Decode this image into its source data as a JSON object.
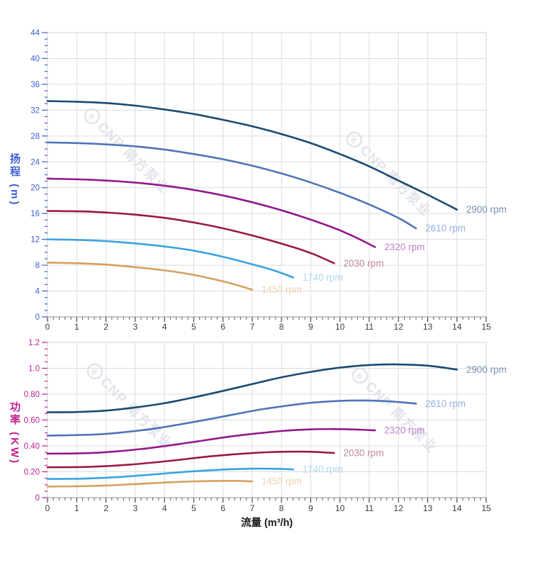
{
  "page": {
    "background": "#ffffff"
  },
  "watermark": {
    "logo": "e",
    "text": "CNP 南方泵业",
    "color": "#c9cede"
  },
  "theme": {
    "border": "#d0d0d0",
    "grid": "#dcdcdc",
    "spine": "#8f8f8f",
    "tick_major": "#222222",
    "tick_minor": "#555555",
    "x_tick_label_color": "#3a3a3a",
    "x_axis_title_color": "#1a1a1a"
  },
  "chart_data": [
    {
      "type": "line",
      "title": "",
      "xlabel": "",
      "ylabel": "扬程 (m)",
      "xlim": [
        0,
        15
      ],
      "ylim": [
        0,
        44
      ],
      "x_major_step": 1,
      "x_minor_step": 0.2,
      "y_major_step": 4,
      "y_minor_step": 1,
      "grid": true,
      "legend_position": "curve-end-labels",
      "axis_color": "#3d5ed1",
      "x_tick_labels": [
        "0",
        "1",
        "2",
        "3",
        "4",
        "5",
        "6",
        "7",
        "8",
        "9",
        "10",
        "11",
        "12",
        "13",
        "14",
        "15"
      ],
      "y_tick_labels": [
        "0",
        "4",
        "8",
        "12",
        "16",
        "20",
        "24",
        "28",
        "32",
        "36",
        "40",
        "44"
      ],
      "series": [
        {
          "name": "2900 rpm",
          "color": "#1b4a73",
          "label_color": "#7690ae",
          "points": [
            [
              0,
              33.4
            ],
            [
              1,
              33.3
            ],
            [
              2,
              33.1
            ],
            [
              3,
              32.7
            ],
            [
              4,
              32.1
            ],
            [
              5,
              31.4
            ],
            [
              6,
              30.5
            ],
            [
              7,
              29.5
            ],
            [
              8,
              28.3
            ],
            [
              9,
              26.9
            ],
            [
              10,
              25.2
            ],
            [
              11,
              23.3
            ],
            [
              12,
              21.1
            ],
            [
              13,
              18.9
            ],
            [
              14,
              16.6
            ]
          ]
        },
        {
          "name": "2610 rpm",
          "color": "#4f74ba",
          "label_color": "#97aede",
          "points": [
            [
              0,
              27.0
            ],
            [
              1,
              26.9
            ],
            [
              2,
              26.7
            ],
            [
              3,
              26.4
            ],
            [
              4,
              25.9
            ],
            [
              5,
              25.2
            ],
            [
              6,
              24.4
            ],
            [
              7,
              23.4
            ],
            [
              8,
              22.2
            ],
            [
              9,
              20.8
            ],
            [
              10,
              19.2
            ],
            [
              11,
              17.4
            ],
            [
              12,
              15.3
            ],
            [
              12.6,
              13.7
            ]
          ]
        },
        {
          "name": "2320 rpm",
          "color": "#92188c",
          "label_color": "#bc7fc6",
          "points": [
            [
              0,
              21.4
            ],
            [
              1.6,
              21.2
            ],
            [
              3.2,
              20.7
            ],
            [
              4.8,
              19.8
            ],
            [
              6.4,
              18.4
            ],
            [
              8,
              16.5
            ],
            [
              9.6,
              14.1
            ],
            [
              10.4,
              12.6
            ],
            [
              11.2,
              10.8
            ]
          ]
        },
        {
          "name": "2030 rpm",
          "color": "#9a1a40",
          "label_color": "#c2879b",
          "points": [
            [
              0,
              16.4
            ],
            [
              1.4,
              16.3
            ],
            [
              2.8,
              15.9
            ],
            [
              4.2,
              15.2
            ],
            [
              5.6,
              14.1
            ],
            [
              7,
              12.6
            ],
            [
              8.4,
              10.8
            ],
            [
              9.1,
              9.7
            ],
            [
              9.8,
              8.3
            ]
          ]
        },
        {
          "name": "1740 rpm",
          "color": "#3aa3e0",
          "label_color": "#a9d7f1",
          "points": [
            [
              0,
              12.0
            ],
            [
              1.2,
              11.9
            ],
            [
              2.4,
              11.6
            ],
            [
              3.6,
              11.1
            ],
            [
              4.8,
              10.4
            ],
            [
              6,
              9.3
            ],
            [
              7.2,
              7.9
            ],
            [
              7.8,
              7.1
            ],
            [
              8.4,
              6.1
            ]
          ]
        },
        {
          "name": "1450 rpm",
          "color": "#d7a05e",
          "label_color": "#ead3ac",
          "points": [
            [
              0,
              8.4
            ],
            [
              1,
              8.3
            ],
            [
              2,
              8.1
            ],
            [
              3,
              7.7
            ],
            [
              4,
              7.2
            ],
            [
              5,
              6.5
            ],
            [
              6,
              5.5
            ],
            [
              6.5,
              4.9
            ],
            [
              7,
              4.2
            ]
          ]
        }
      ]
    },
    {
      "type": "line",
      "title": "",
      "xlabel": "流量 (m³/h)",
      "ylabel": "功率 (KW)",
      "xlim": [
        0,
        15
      ],
      "ylim": [
        0,
        1.2
      ],
      "x_major_step": 1,
      "x_minor_step": 0.2,
      "y_major_step": 0.2,
      "y_minor_step": 0.05,
      "grid": true,
      "legend_position": "curve-end-labels",
      "axis_color": "#c0218f",
      "x_tick_labels": [
        "0",
        "1",
        "2",
        "3",
        "4",
        "5",
        "6",
        "7",
        "8",
        "9",
        "10",
        "11",
        "12",
        "13",
        "14",
        "15"
      ],
      "y_tick_labels": [
        "0",
        "0.20",
        "0.40",
        "0.60",
        "0.80",
        "1.0",
        "1.2"
      ],
      "series": [
        {
          "name": "2900 rpm",
          "color": "#1b4a73",
          "label_color": "#7690ae",
          "points": [
            [
              0,
              0.66
            ],
            [
              1,
              0.662
            ],
            [
              2,
              0.673
            ],
            [
              3,
              0.697
            ],
            [
              4,
              0.73
            ],
            [
              5,
              0.775
            ],
            [
              6,
              0.825
            ],
            [
              7,
              0.878
            ],
            [
              8,
              0.93
            ],
            [
              9,
              0.972
            ],
            [
              10,
              1.005
            ],
            [
              11,
              1.025
            ],
            [
              12,
              1.03
            ],
            [
              13,
              1.02
            ],
            [
              14,
              0.99
            ]
          ]
        },
        {
          "name": "2610 rpm",
          "color": "#4f74ba",
          "label_color": "#97aede",
          "points": [
            [
              0,
              0.48
            ],
            [
              0.9,
              0.483
            ],
            [
              1.8,
              0.49
            ],
            [
              2.7,
              0.508
            ],
            [
              3.6,
              0.532
            ],
            [
              4.5,
              0.565
            ],
            [
              5.4,
              0.601
            ],
            [
              6.3,
              0.64
            ],
            [
              7.2,
              0.678
            ],
            [
              8.1,
              0.708
            ],
            [
              9,
              0.733
            ],
            [
              9.9,
              0.747
            ],
            [
              10.8,
              0.751
            ],
            [
              11.7,
              0.744
            ],
            [
              12.6,
              0.727
            ]
          ]
        },
        {
          "name": "2320 rpm",
          "color": "#92188c",
          "label_color": "#bc7fc6",
          "points": [
            [
              0,
              0.34
            ],
            [
              1.6,
              0.346
            ],
            [
              3.2,
              0.376
            ],
            [
              4.8,
              0.424
            ],
            [
              6.4,
              0.477
            ],
            [
              8,
              0.515
            ],
            [
              9,
              0.528
            ],
            [
              9.8,
              0.53
            ],
            [
              10.5,
              0.527
            ],
            [
              11.2,
              0.52
            ]
          ]
        },
        {
          "name": "2030 rpm",
          "color": "#9a1a40",
          "label_color": "#c2879b",
          "points": [
            [
              0,
              0.235
            ],
            [
              1.4,
              0.238
            ],
            [
              2.8,
              0.255
            ],
            [
              4.2,
              0.285
            ],
            [
              5.6,
              0.32
            ],
            [
              7,
              0.345
            ],
            [
              7.9,
              0.354
            ],
            [
              8.6,
              0.356
            ],
            [
              9.2,
              0.353
            ],
            [
              9.8,
              0.345
            ]
          ]
        },
        {
          "name": "1740 rpm",
          "color": "#3aa3e0",
          "label_color": "#a9d7f1",
          "points": [
            [
              0,
              0.145
            ],
            [
              1.2,
              0.147
            ],
            [
              2.4,
              0.159
            ],
            [
              3.6,
              0.179
            ],
            [
              4.8,
              0.201
            ],
            [
              6,
              0.217
            ],
            [
              6.8,
              0.223
            ],
            [
              7.4,
              0.224
            ],
            [
              8,
              0.222
            ],
            [
              8.4,
              0.218
            ]
          ]
        },
        {
          "name": "1450 rpm",
          "color": "#d7a05e",
          "label_color": "#ead3ac",
          "points": [
            [
              0,
              0.086
            ],
            [
              1,
              0.088
            ],
            [
              2,
              0.094
            ],
            [
              3,
              0.105
            ],
            [
              4,
              0.117
            ],
            [
              5,
              0.126
            ],
            [
              5.7,
              0.129
            ],
            [
              6.2,
              0.13
            ],
            [
              6.6,
              0.129
            ],
            [
              7,
              0.126
            ]
          ]
        }
      ]
    }
  ]
}
